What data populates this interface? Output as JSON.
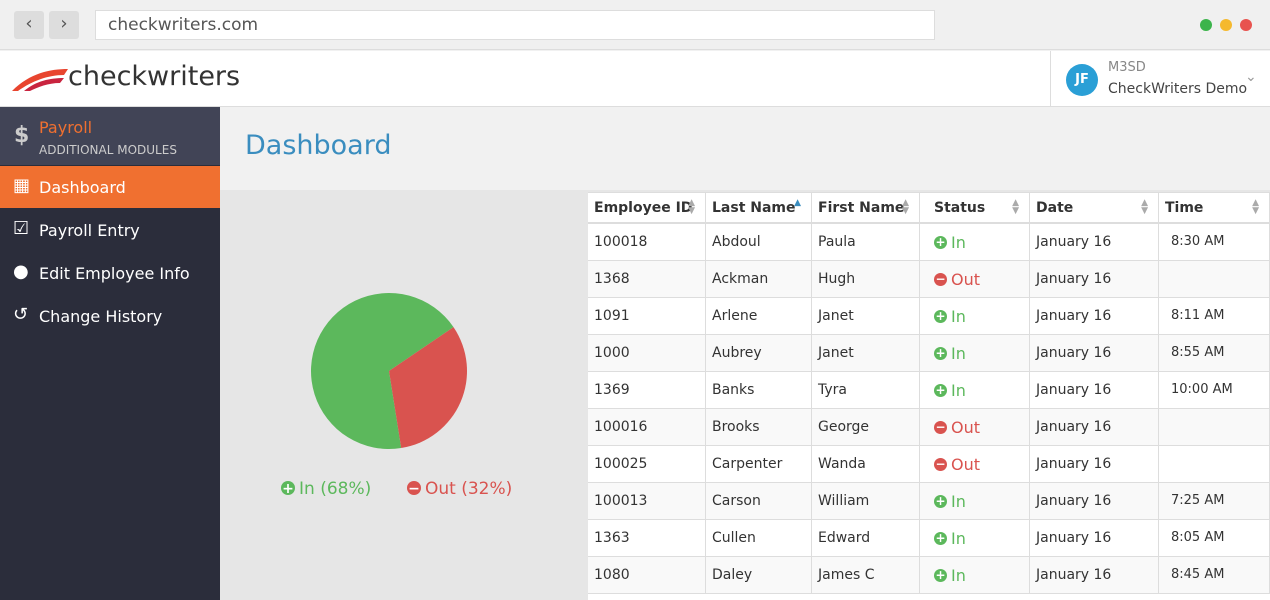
{
  "browser": {
    "url": "checkwriters.com"
  },
  "header": {
    "logo": "checkwriters",
    "avatar": "JF",
    "account": "M3SD",
    "company": "CheckWriters Demo"
  },
  "sidebar": {
    "module": "Payroll",
    "module_sub": "ADDITIONAL MODULES",
    "items": [
      "Dashboard",
      "Payroll Entry",
      "Edit Employee Info",
      "Change History"
    ]
  },
  "page_title": "Dashboard",
  "chart_data": {
    "type": "pie",
    "categories": [
      "In",
      "Out"
    ],
    "values": [
      68,
      32
    ],
    "value_labels": [
      "In (68%)",
      "Out (32%)"
    ],
    "colors": [
      "#5cb85c",
      "#d9534f"
    ]
  },
  "table": {
    "columns": [
      "Employee ID",
      "Last Name",
      "First Name",
      "Status",
      "Date",
      "Time"
    ],
    "rows": [
      [
        "100018",
        "Abdoul",
        "Paula",
        "In",
        "January 16",
        "8:30 AM"
      ],
      [
        "1368",
        "Ackman",
        "Hugh",
        "Out",
        "January 16",
        null
      ],
      [
        "1091",
        "Arlene",
        "Janet",
        "In",
        "January 16",
        "8:11 AM"
      ],
      [
        "1000",
        "Aubrey",
        "Janet",
        "In",
        "January 16",
        "8:55 AM"
      ],
      [
        "1369",
        "Banks",
        "Tyra",
        "In",
        "January 16",
        "10:00 AM"
      ],
      [
        "100016",
        "Brooks",
        "George",
        "Out",
        "January 16",
        null
      ],
      [
        "100025",
        "Carpenter",
        "Wanda",
        "Out",
        "January 16",
        null
      ],
      [
        "100013",
        "Carson",
        "William",
        "In",
        "January 16",
        "7:25 AM"
      ],
      [
        "1363",
        "Cullen",
        "Edward",
        "In",
        "January 16",
        "8:05 AM"
      ],
      [
        "1080",
        "Daley",
        "James C",
        "In",
        "January 16",
        "8:45 AM"
      ]
    ]
  }
}
